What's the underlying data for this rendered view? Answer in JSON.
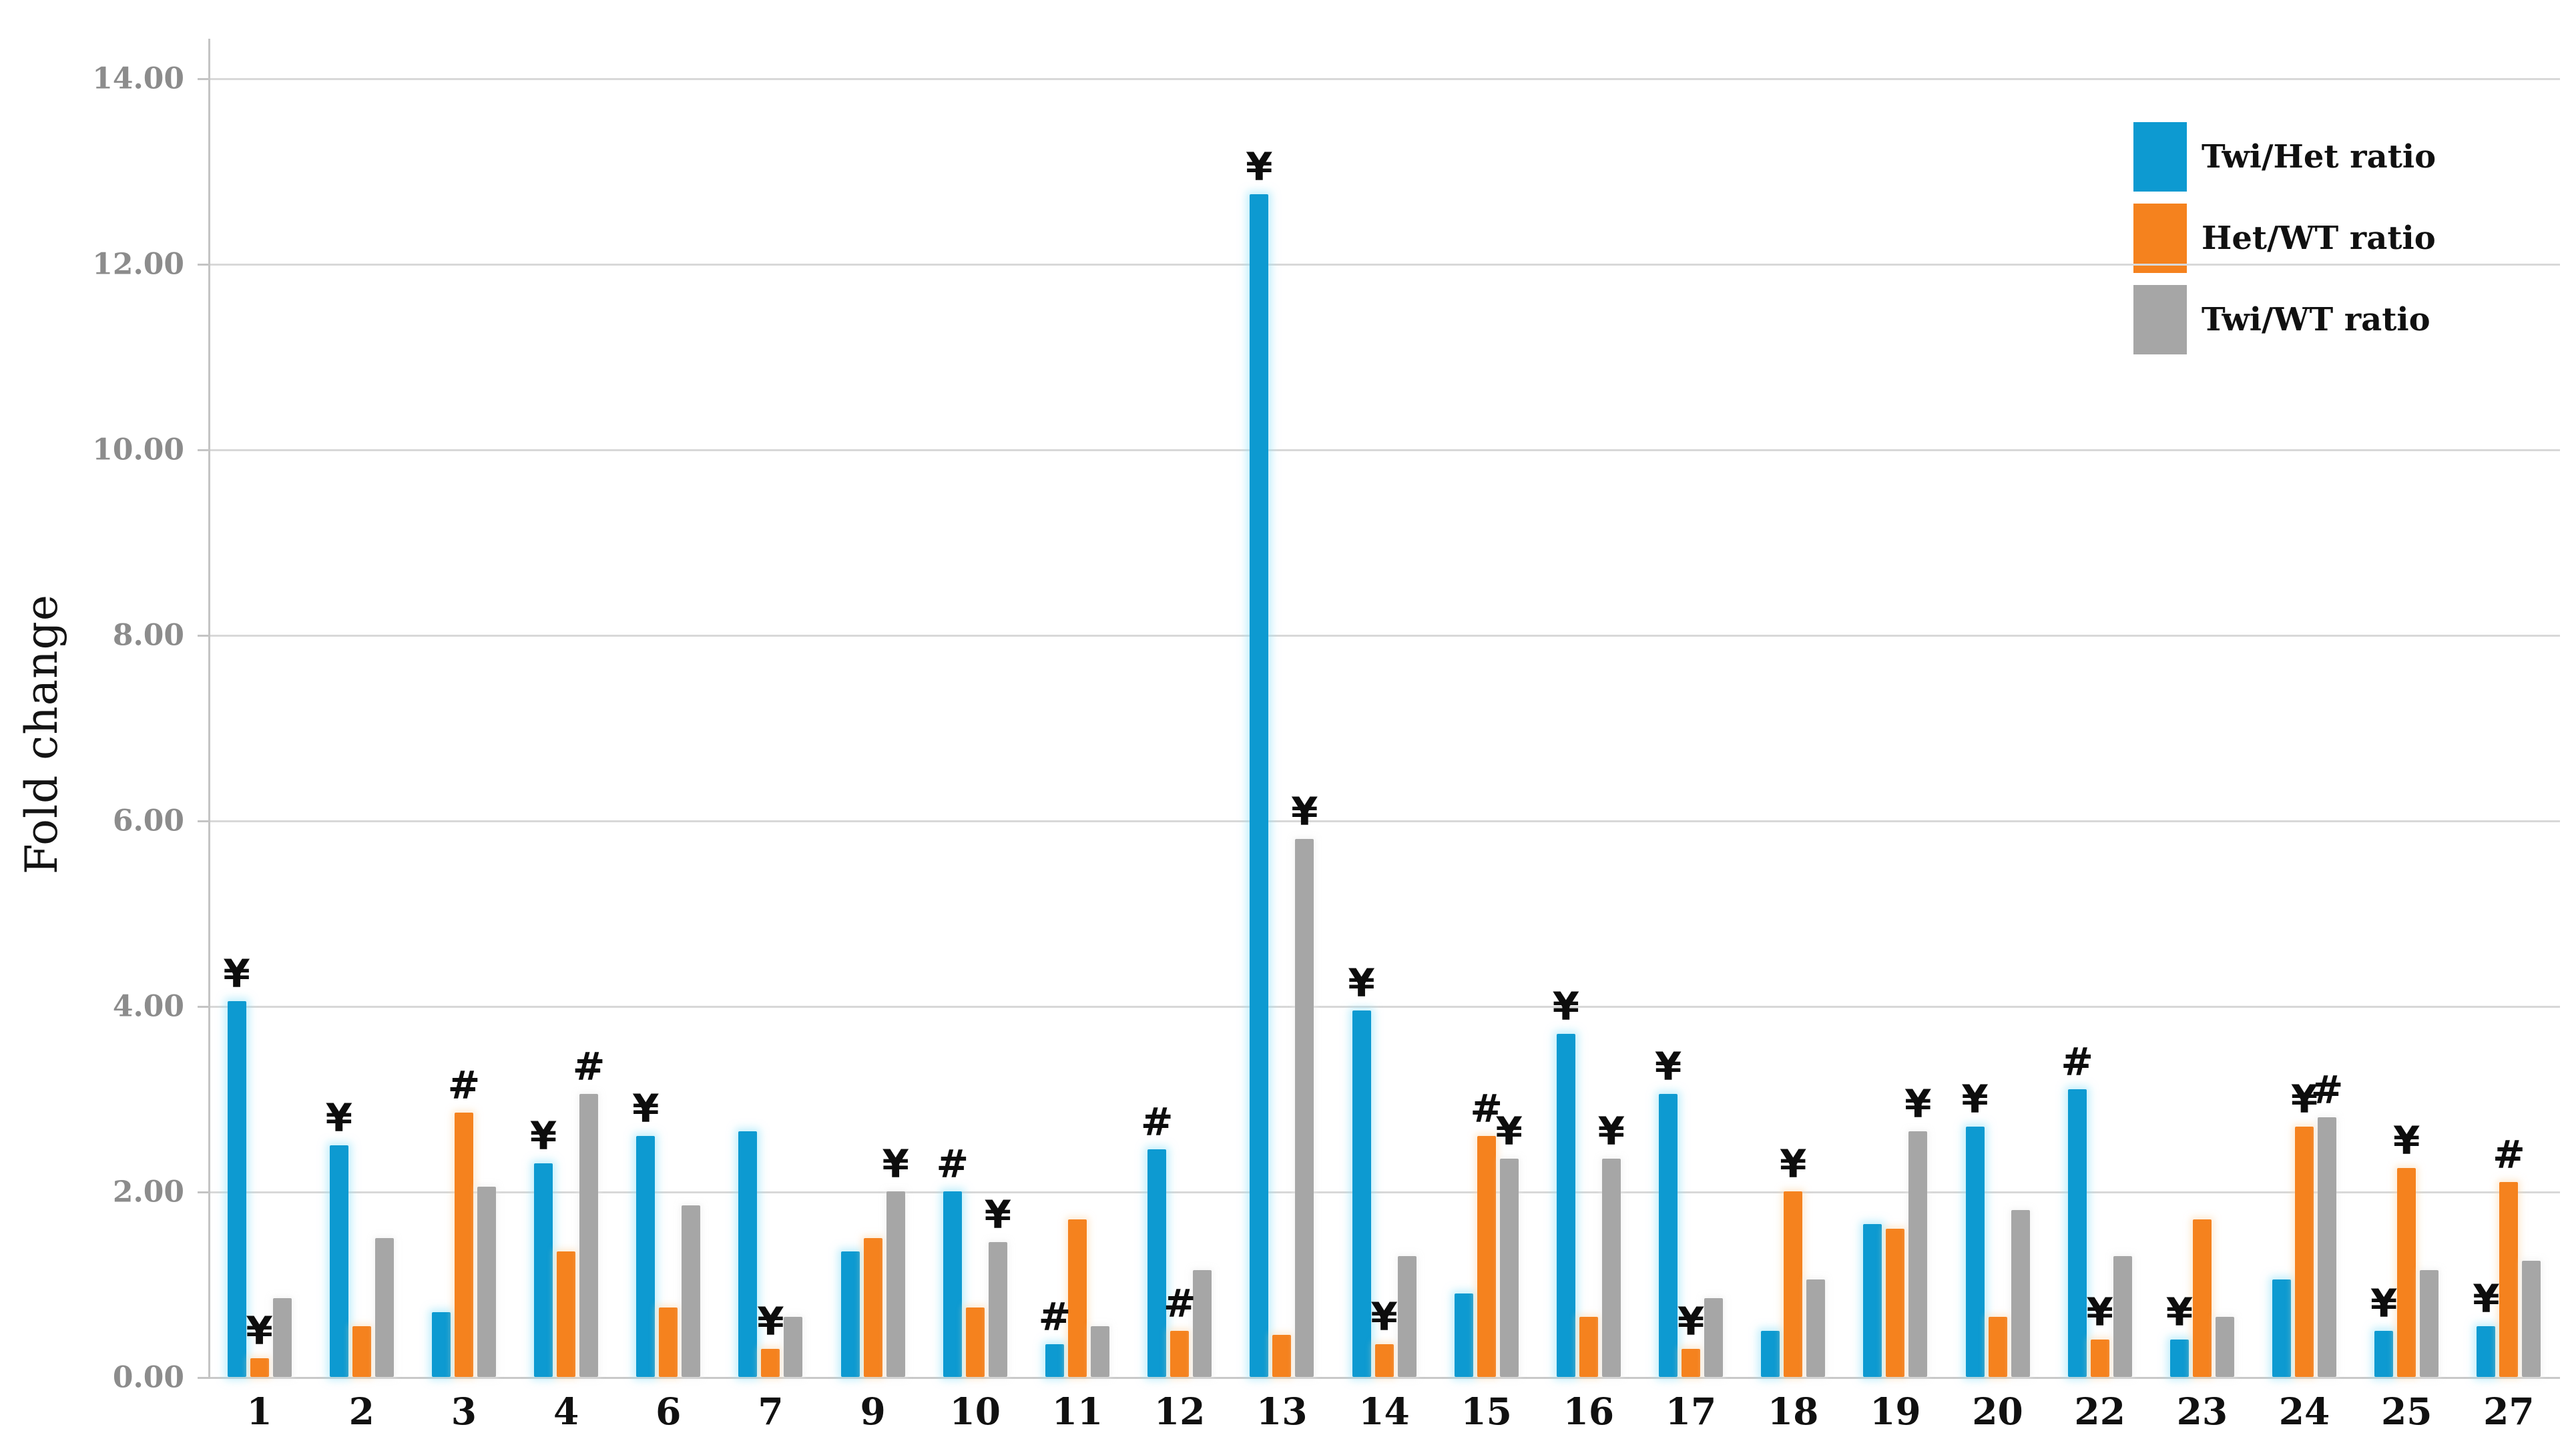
{
  "figure": {
    "background": "#ffffff"
  },
  "chart_data": {
    "type": "bar",
    "title": "",
    "xlabel": "",
    "ylabel": "Fold change",
    "ylim": [
      0,
      14
    ],
    "grid": true,
    "legend_position": "top-right",
    "categories": [
      "1",
      "2",
      "3",
      "4",
      "6",
      "7",
      "9",
      "10",
      "11",
      "12",
      "13",
      "14",
      "15",
      "16",
      "17",
      "18",
      "19",
      "20",
      "22",
      "23",
      "24",
      "25",
      "27"
    ],
    "series": [
      {
        "name": "Twi/Het ratio",
        "color": "#0d9ad1",
        "values": [
          4.05,
          2.5,
          0.7,
          2.3,
          2.6,
          2.65,
          1.35,
          2.0,
          0.35,
          2.45,
          12.75,
          3.95,
          0.9,
          3.7,
          3.05,
          0.5,
          1.65,
          2.7,
          3.1,
          0.4,
          1.05,
          0.5,
          0.55
        ]
      },
      {
        "name": "Het/WT ratio",
        "color": "#f5821e",
        "values": [
          0.2,
          0.55,
          2.85,
          1.35,
          0.75,
          0.3,
          1.5,
          0.75,
          1.7,
          0.5,
          0.45,
          0.35,
          2.6,
          0.65,
          0.3,
          2.0,
          1.6,
          0.65,
          0.4,
          1.7,
          2.7,
          2.25,
          2.1
        ]
      },
      {
        "name": "Twi/WT ratio",
        "color": "#a6a6a6",
        "values": [
          0.85,
          1.5,
          2.05,
          3.05,
          1.85,
          0.65,
          2.0,
          1.45,
          0.55,
          1.15,
          5.8,
          1.3,
          2.35,
          2.35,
          0.85,
          1.05,
          2.65,
          1.8,
          1.3,
          0.65,
          2.8,
          1.15,
          1.25
        ]
      }
    ],
    "yticks": {
      "values": [
        0,
        2,
        4,
        6,
        8,
        10,
        12,
        14
      ],
      "labels": [
        "0.00",
        "2.00",
        "4.00",
        "6.00",
        "8.00",
        "10.00",
        "12.00",
        "14.00"
      ]
    },
    "annotations": [
      {
        "category": "1",
        "series": "Twi/Het ratio",
        "symbol": "¥"
      },
      {
        "category": "1",
        "series": "Het/WT ratio",
        "symbol": "¥"
      },
      {
        "category": "2",
        "series": "Twi/Het ratio",
        "symbol": "¥"
      },
      {
        "category": "3",
        "series": "Het/WT ratio",
        "symbol": "#"
      },
      {
        "category": "4",
        "series": "Twi/Het ratio",
        "symbol": "¥"
      },
      {
        "category": "4",
        "series": "Twi/WT ratio",
        "symbol": "#"
      },
      {
        "category": "6",
        "series": "Twi/Het ratio",
        "symbol": "¥"
      },
      {
        "category": "7",
        "series": "Het/WT ratio",
        "symbol": "¥"
      },
      {
        "category": "9",
        "series": "Twi/WT ratio",
        "symbol": "¥"
      },
      {
        "category": "10",
        "series": "Twi/Het ratio",
        "symbol": "#"
      },
      {
        "category": "10",
        "series": "Twi/WT ratio",
        "symbol": "¥"
      },
      {
        "category": "11",
        "series": "Twi/Het ratio",
        "symbol": "#"
      },
      {
        "category": "12",
        "series": "Twi/Het ratio",
        "symbol": "#"
      },
      {
        "category": "12",
        "series": "Het/WT ratio",
        "symbol": "#"
      },
      {
        "category": "13",
        "series": "Twi/Het ratio",
        "symbol": "¥"
      },
      {
        "category": "13",
        "series": "Twi/WT ratio",
        "symbol": "¥"
      },
      {
        "category": "14",
        "series": "Twi/Het ratio",
        "symbol": "¥"
      },
      {
        "category": "14",
        "series": "Het/WT ratio",
        "symbol": "¥"
      },
      {
        "category": "15",
        "series": "Het/WT ratio",
        "symbol": "#"
      },
      {
        "category": "15",
        "series": "Twi/WT ratio",
        "symbol": "¥"
      },
      {
        "category": "16",
        "series": "Twi/Het ratio",
        "symbol": "¥"
      },
      {
        "category": "16",
        "series": "Twi/WT ratio",
        "symbol": "¥"
      },
      {
        "category": "17",
        "series": "Twi/Het ratio",
        "symbol": "¥"
      },
      {
        "category": "17",
        "series": "Het/WT ratio",
        "symbol": "¥"
      },
      {
        "category": "18",
        "series": "Het/WT ratio",
        "symbol": "¥"
      },
      {
        "category": "19",
        "series": "Twi/WT ratio",
        "symbol": "¥"
      },
      {
        "category": "20",
        "series": "Twi/Het ratio",
        "symbol": "¥"
      },
      {
        "category": "22",
        "series": "Twi/Het ratio",
        "symbol": "#"
      },
      {
        "category": "22",
        "series": "Het/WT ratio",
        "symbol": "¥"
      },
      {
        "category": "23",
        "series": "Twi/Het ratio",
        "symbol": "¥"
      },
      {
        "category": "24",
        "series": "Het/WT ratio",
        "symbol": "¥"
      },
      {
        "category": "24",
        "series": "Twi/WT ratio",
        "symbol": "#"
      },
      {
        "category": "25",
        "series": "Twi/Het ratio",
        "symbol": "¥"
      },
      {
        "category": "25",
        "series": "Het/WT ratio",
        "symbol": "¥"
      },
      {
        "category": "27",
        "series": "Twi/Het ratio",
        "symbol": "¥"
      },
      {
        "category": "27",
        "series": "Het/WT ratio",
        "symbol": "#"
      }
    ],
    "colors": {
      "grid": "#d8d8d8",
      "axis": "#c4c4c4",
      "tick_text": "#8c8c8c",
      "label_text": "#141414"
    }
  }
}
